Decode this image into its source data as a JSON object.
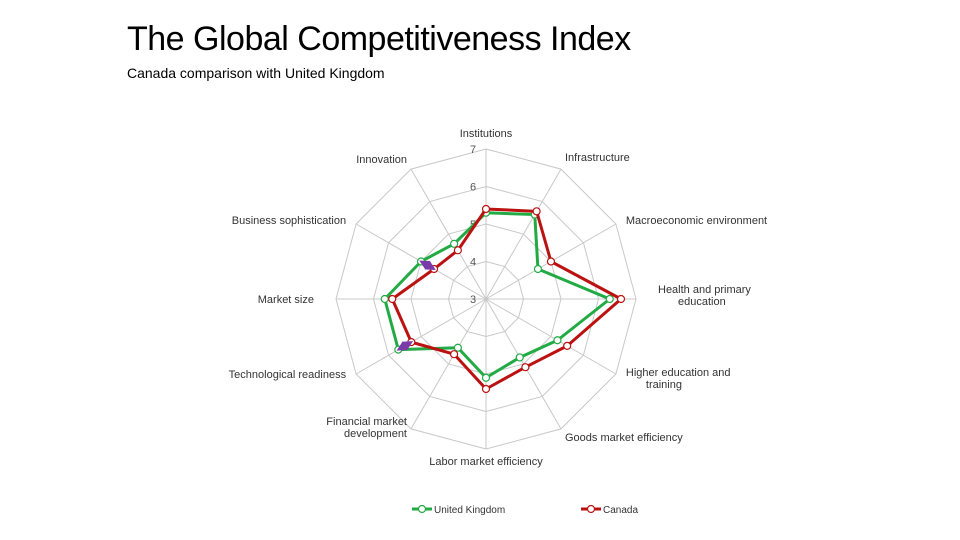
{
  "header": {
    "title": "The Global Competitiveness Index",
    "subtitle": "Canada comparison with United Kingdom"
  },
  "chart_data": {
    "type": "radar",
    "categories": [
      "Institutions",
      "Infrastructure",
      "Macroeconomic environment",
      "Health and primary education",
      "Higher education and training",
      "Goods market efficiency",
      "Labor market efficiency",
      "Financial market development",
      "Technological readiness",
      "Market size",
      "Business sophistication",
      "Innovation"
    ],
    "rlim": [
      3,
      7
    ],
    "ticks": [
      3,
      4,
      5,
      6,
      7
    ],
    "series": [
      {
        "name": "United Kingdom",
        "color": "#22aa44",
        "values": [
          5.3,
          5.6,
          4.6,
          6.3,
          5.2,
          4.8,
          5.1,
          4.5,
          5.7,
          5.7,
          5.0,
          4.7
        ]
      },
      {
        "name": "Canada",
        "color": "#bb1111",
        "values": [
          5.4,
          5.7,
          5.0,
          6.6,
          5.5,
          5.1,
          5.4,
          4.7,
          5.3,
          5.5,
          4.6,
          4.5
        ]
      }
    ],
    "annotation_color": "#7a3aa8",
    "legend_position": "bottom"
  }
}
